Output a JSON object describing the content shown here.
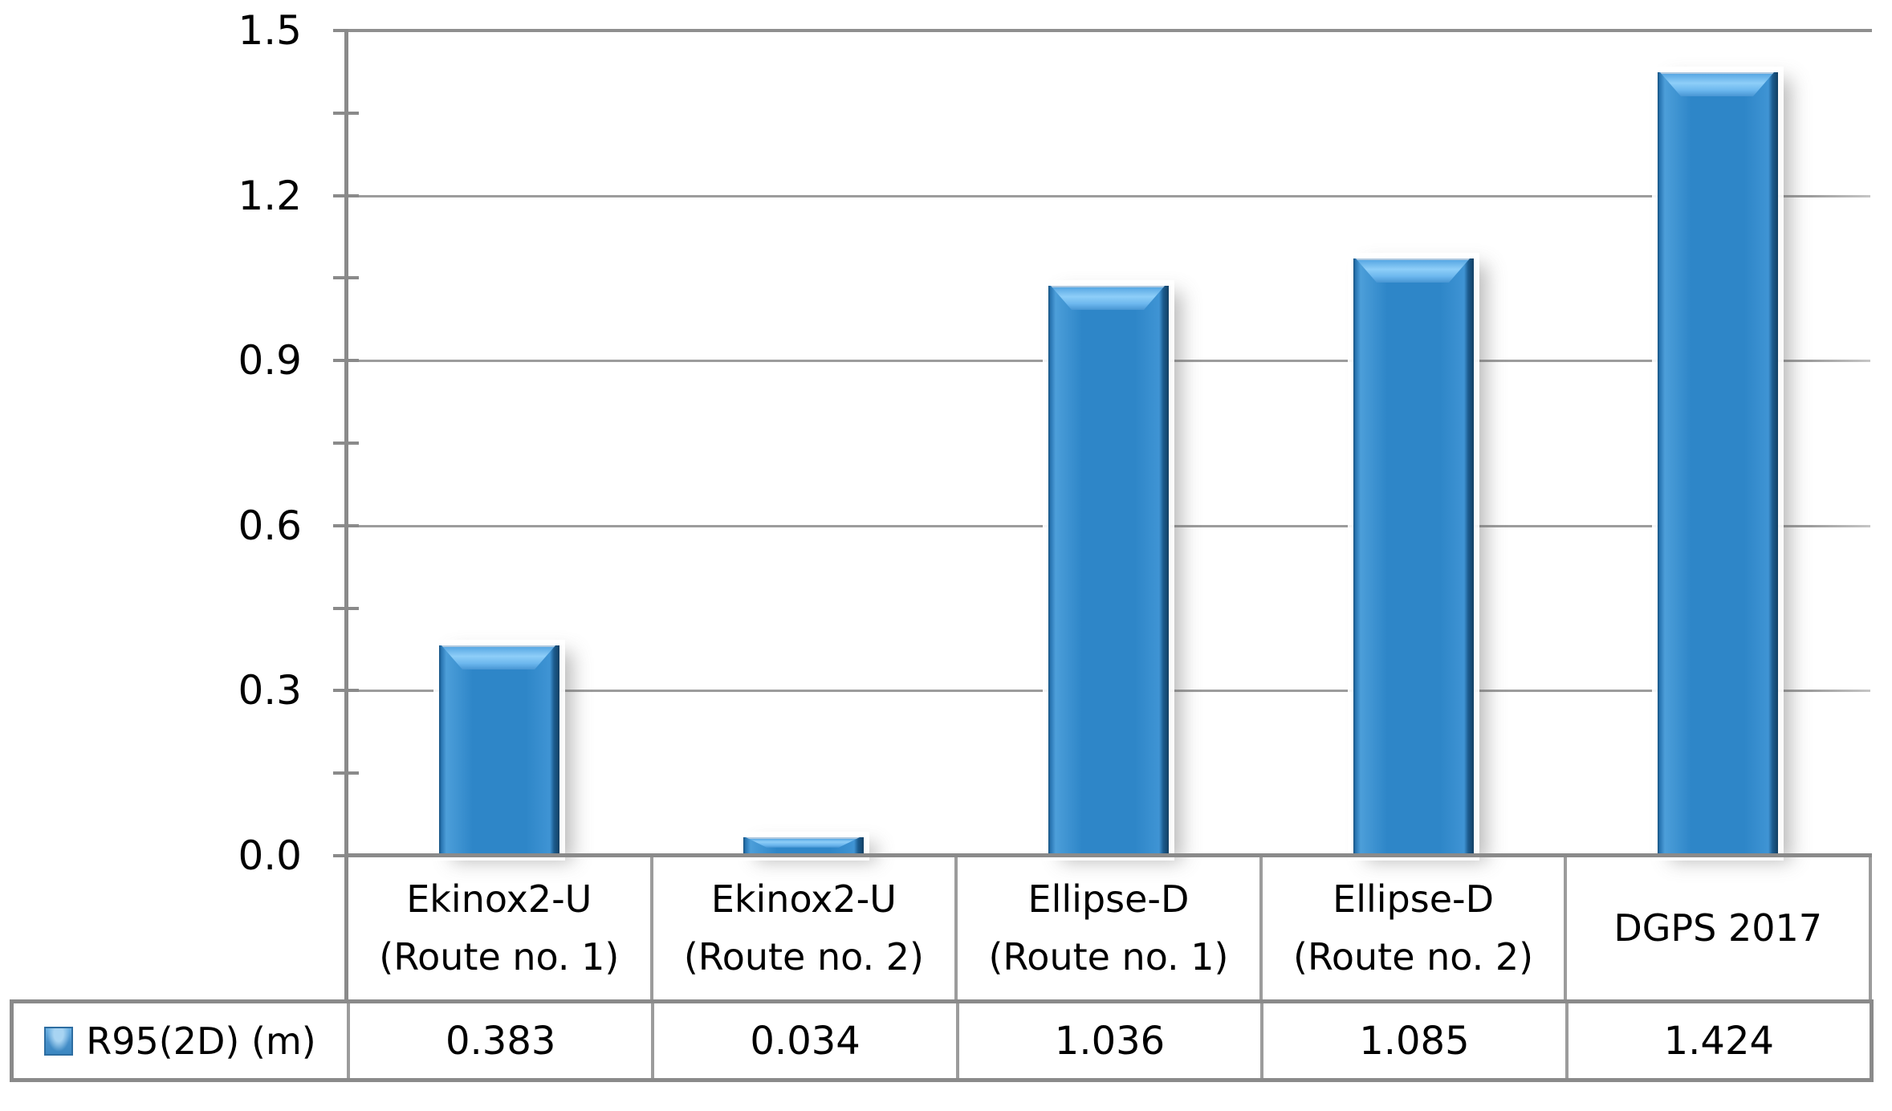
{
  "chart_data": {
    "type": "bar",
    "title": "",
    "xlabel": "",
    "ylabel": "",
    "categories": [
      "Ekinox2-U\n(Route no. 1)",
      "Ekinox2-U\n(Route no. 2)",
      "Ellipse-D\n(Route no. 1)",
      "Ellipse-D\n(Route no. 2)",
      "DGPS 2017"
    ],
    "series": [
      {
        "name": "R95(2D) (m)",
        "values": [
          0.383,
          0.034,
          1.036,
          1.085,
          1.424
        ]
      }
    ],
    "value_labels": [
      "0.383",
      "0.034",
      "1.036",
      "1.085",
      "1.424"
    ],
    "legend_label": "R95(2D) (m)",
    "legend_position": "bottom-left-table-cell",
    "ylim": [
      0,
      1.5
    ],
    "ytick_labels": [
      "0.0",
      "0.3",
      "0.6",
      "0.9",
      "1.2",
      "1.5"
    ],
    "minor_tick_step": 0.15,
    "grid": "horizontal-major",
    "bar_color": "#2e86c8",
    "gridline_color": "#9c9c9c",
    "axis_color": "#8a8a8a",
    "text_color": "#000000"
  }
}
